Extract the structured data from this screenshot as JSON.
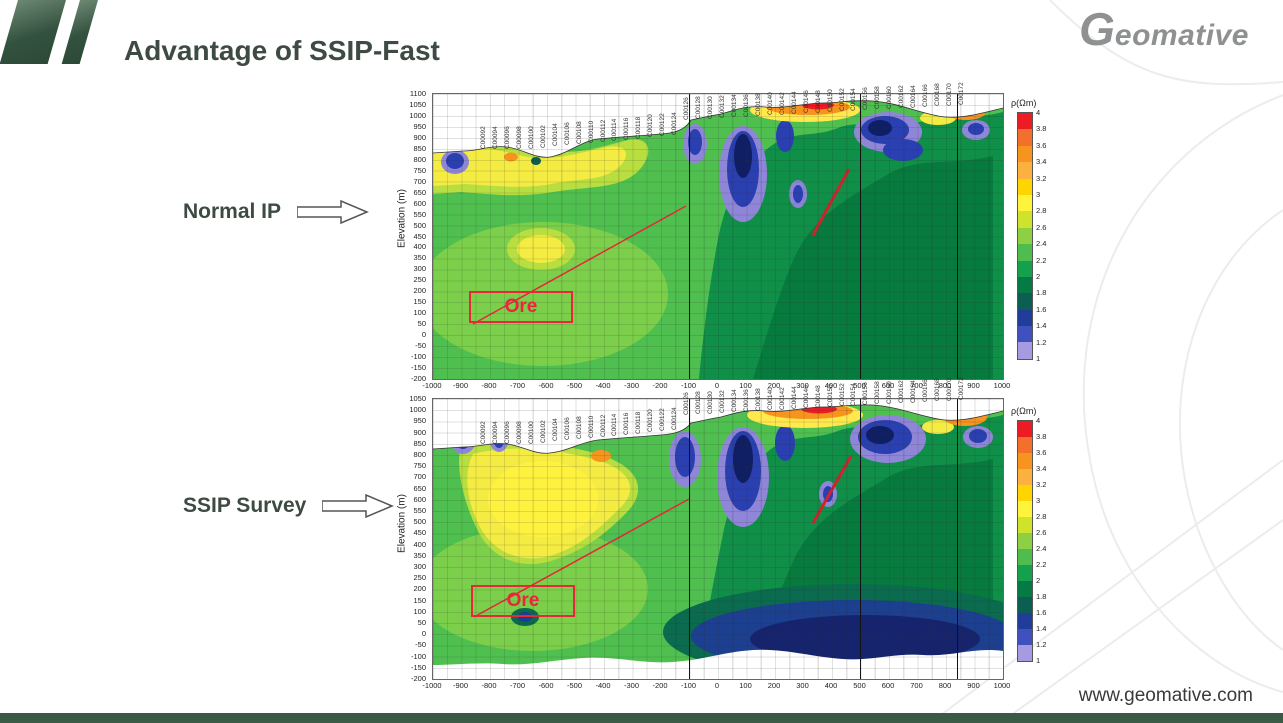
{
  "slide": {
    "title": "Advantage of SSIP-Fast",
    "logo_g": "G",
    "logo_rest": "eomative",
    "footer_url": "www.geomative.com"
  },
  "palette": [
    "#ed1c24",
    "#f3702c",
    "#f7941e",
    "#fbb040",
    "#fed500",
    "#fff33b",
    "#cfe32c",
    "#8ed044",
    "#4fbd4e",
    "#14a04c",
    "#067a45",
    "#0b5e51",
    "#1f3d99",
    "#3f51c1",
    "#a79ae0"
  ],
  "chart_data": [
    {
      "type": "heatmap",
      "title": "Normal IP",
      "ylabel": "Elevation (m)",
      "xlim": [
        -1000,
        1000
      ],
      "ylim": [
        -200,
        1100
      ],
      "x_ticks": [
        -1000,
        -900,
        -800,
        -700,
        -600,
        -500,
        -400,
        -300,
        -200,
        -100,
        0,
        100,
        200,
        300,
        400,
        500,
        600,
        700,
        800,
        900,
        1000
      ],
      "y_ticks": [
        1100,
        1050,
        1000,
        950,
        900,
        850,
        800,
        750,
        700,
        650,
        600,
        550,
        500,
        450,
        400,
        350,
        300,
        250,
        200,
        150,
        100,
        50,
        0,
        -50,
        -100,
        -150,
        -200
      ],
      "colorbar": {
        "label": "ρ(Ωm)",
        "ticks": [
          "4",
          "3.8",
          "3.6",
          "3.4",
          "3.2",
          "3",
          "2.8",
          "2.6",
          "2.4",
          "2.2",
          "2",
          "1.8",
          "1.6",
          "1.4",
          "1.2",
          "1"
        ],
        "position": "right"
      },
      "electrodes": [
        "C00092",
        "C00094",
        "C00096",
        "C00098",
        "C00100",
        "C00102",
        "C00104",
        "C00106",
        "C00108",
        "C00110",
        "C00112",
        "C00114",
        "C00116",
        "C00118",
        "C00120",
        "C00122",
        "C00124",
        "C00126",
        "C00128",
        "C00130",
        "C00132",
        "C00134",
        "C00136",
        "C00138",
        "C00140",
        "C00142",
        "C00144",
        "C00146",
        "C00148",
        "C00150",
        "C00152",
        "C00154",
        "C00156",
        "C00158",
        "C00160",
        "C00162",
        "C00164",
        "C00166",
        "C00168",
        "C00170",
        "C00172"
      ],
      "annotations": [
        "Ore"
      ],
      "marker_lines_x": [
        -100,
        500,
        840
      ],
      "grid": true
    },
    {
      "type": "heatmap",
      "title": "SSIP Survey",
      "ylabel": "Elevation (m)",
      "xlim": [
        -1000,
        1000
      ],
      "ylim": [
        -200,
        1050
      ],
      "x_ticks": [
        -1000,
        -900,
        -800,
        -700,
        -600,
        -500,
        -400,
        -300,
        -200,
        -100,
        0,
        100,
        200,
        300,
        400,
        500,
        600,
        700,
        800,
        900,
        1000
      ],
      "y_ticks": [
        1050,
        1000,
        950,
        900,
        850,
        800,
        750,
        700,
        650,
        600,
        550,
        500,
        450,
        400,
        350,
        300,
        250,
        200,
        150,
        100,
        50,
        0,
        -50,
        -100,
        -150,
        -200
      ],
      "colorbar": {
        "label": "ρ(Ωm)",
        "ticks": [
          "4",
          "3.8",
          "3.6",
          "3.4",
          "3.2",
          "3",
          "2.8",
          "2.6",
          "2.4",
          "2.2",
          "2",
          "1.8",
          "1.6",
          "1.4",
          "1.2",
          "1"
        ],
        "position": "right"
      },
      "electrodes": [
        "C00092",
        "C00094",
        "C00096",
        "C00098",
        "C00100",
        "C00102",
        "C00104",
        "C00106",
        "C00108",
        "C00110",
        "C00112",
        "C00114",
        "C00116",
        "C00118",
        "C00120",
        "C00122",
        "C00124",
        "C00126",
        "C00128",
        "C00130",
        "C00132",
        "C00134",
        "C00136",
        "C00138",
        "C00140",
        "C00142",
        "C00144",
        "C00146",
        "C00148",
        "C00150",
        "C00152",
        "C00154",
        "C00156",
        "C00158",
        "C00160",
        "C00162",
        "C00164",
        "C00166",
        "C00168",
        "C00170",
        "C00172"
      ],
      "annotations": [
        "Ore"
      ],
      "marker_lines_x": [
        -100,
        500,
        840
      ],
      "grid": true
    }
  ]
}
